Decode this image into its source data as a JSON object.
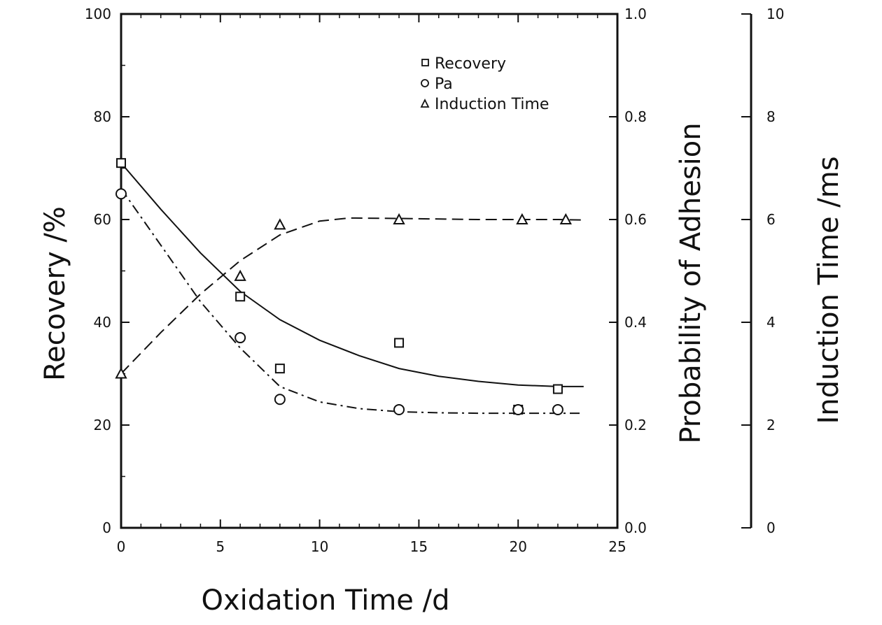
{
  "chart_data": {
    "type": "scatter",
    "title": "",
    "xlabel": "Oxidation Time /d",
    "xlim": [
      0,
      25
    ],
    "xticks": [
      "0",
      "5",
      "10",
      "15",
      "20",
      "25"
    ],
    "axes": {
      "left": {
        "label": "Recovery /%",
        "lim": [
          0,
          100
        ],
        "ticks": [
          "0",
          "20",
          "40",
          "60",
          "80",
          "100"
        ]
      },
      "right1": {
        "label": "Probability of Adhesion",
        "lim": [
          0.0,
          1.0
        ],
        "ticks": [
          "0.0",
          "0.2",
          "0.4",
          "0.6",
          "0.8",
          "1.0"
        ]
      },
      "right2": {
        "label": "Induction Time /ms",
        "lim": [
          0,
          10
        ],
        "ticks": [
          "0",
          "2",
          "4",
          "6",
          "8",
          "10"
        ]
      }
    },
    "legend_position": "top-right",
    "grid": false,
    "series": [
      {
        "name": "Recovery",
        "axis": "left",
        "marker": "square",
        "line_style": "solid",
        "points": [
          [
            0,
            71
          ],
          [
            6,
            45
          ],
          [
            8,
            31
          ],
          [
            14,
            36
          ],
          [
            20,
            23
          ],
          [
            22,
            27
          ]
        ],
        "fit": [
          [
            0,
            71
          ],
          [
            2,
            62
          ],
          [
            4,
            53.5
          ],
          [
            6,
            46
          ],
          [
            8,
            40.5
          ],
          [
            10,
            36.5
          ],
          [
            12,
            33.5
          ],
          [
            14,
            31
          ],
          [
            16,
            29.5
          ],
          [
            18,
            28.5
          ],
          [
            20,
            27.8
          ],
          [
            22,
            27.5
          ],
          [
            23.3,
            27.5
          ]
        ]
      },
      {
        "name": "Pa",
        "axis": "right1",
        "marker": "circle",
        "line_style": "dashdot",
        "points": [
          [
            0,
            0.65
          ],
          [
            6,
            0.37
          ],
          [
            8,
            0.25
          ],
          [
            14,
            0.23
          ],
          [
            20,
            0.23
          ],
          [
            22,
            0.23
          ]
        ],
        "fit": [
          [
            0,
            0.66
          ],
          [
            2,
            0.55
          ],
          [
            4,
            0.44
          ],
          [
            6,
            0.35
          ],
          [
            8,
            0.275
          ],
          [
            10,
            0.245
          ],
          [
            12,
            0.232
          ],
          [
            14,
            0.226
          ],
          [
            16,
            0.224
          ],
          [
            18,
            0.223
          ],
          [
            20,
            0.223
          ],
          [
            22,
            0.223
          ],
          [
            23.3,
            0.223
          ]
        ]
      },
      {
        "name": "Induction Time",
        "axis": "right2",
        "marker": "triangle",
        "line_style": "dashed",
        "points": [
          [
            0,
            3.0
          ],
          [
            6,
            4.9
          ],
          [
            8,
            5.9
          ],
          [
            14,
            6.0
          ],
          [
            20.2,
            6.0
          ],
          [
            22.4,
            6.0
          ]
        ],
        "fit": [
          [
            0,
            3.0
          ],
          [
            2,
            3.8
          ],
          [
            4,
            4.55
          ],
          [
            6,
            5.2
          ],
          [
            8,
            5.7
          ],
          [
            10,
            5.97
          ],
          [
            11.5,
            6.03
          ],
          [
            14,
            6.02
          ],
          [
            18,
            6.0
          ],
          [
            22,
            6.0
          ],
          [
            23.3,
            5.99
          ]
        ]
      }
    ],
    "colors": {
      "ink": "#111111",
      "background": "#ffffff"
    }
  }
}
